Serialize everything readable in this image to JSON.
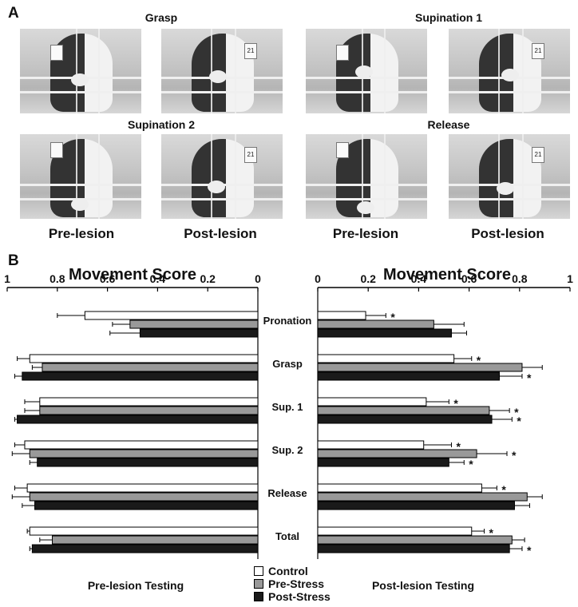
{
  "panel_a_letter": "A",
  "panel_b_letter": "B",
  "photo_titles": [
    "Grasp",
    "Supination 1",
    "Supination 2",
    "Release"
  ],
  "photo_tag_numbers": [
    "21"
  ],
  "condition_labels": [
    "Pre-lesion",
    "Post-lesion",
    "Pre-lesion",
    "Post-lesion"
  ],
  "colors": {
    "control": "#ffffff",
    "pre_stress": "#999999",
    "post_stress": "#1a1a1a",
    "stroke": "#000000"
  },
  "chart_data": [
    {
      "type": "bar",
      "orientation": "horizontal",
      "x_reversed": true,
      "title": "Movement Score",
      "subtitle": "Pre-lesion Testing",
      "xlim": [
        0,
        1
      ],
      "xticks": [
        "0",
        "0.2",
        "0.4",
        "0.6",
        "0.8",
        "1"
      ],
      "categories": [
        "Pronation",
        "Grasp",
        "Sup. 1",
        "Sup. 2",
        "Release",
        "Total"
      ],
      "series": [
        {
          "name": "Control",
          "values": [
            0.69,
            0.91,
            0.87,
            0.93,
            0.92,
            0.91
          ],
          "errors": [
            0.11,
            0.05,
            0.06,
            0.04,
            0.05,
            0.01
          ]
        },
        {
          "name": "Pre-Stress",
          "values": [
            0.51,
            0.86,
            0.87,
            0.91,
            0.91,
            0.82
          ],
          "errors": [
            0.07,
            0.04,
            0.06,
            0.07,
            0.07,
            0.05
          ]
        },
        {
          "name": "Post-Stress",
          "values": [
            0.47,
            0.94,
            0.96,
            0.88,
            0.89,
            0.9
          ],
          "errors": [
            0.12,
            0.03,
            0.01,
            0.03,
            0.05,
            0.01
          ]
        }
      ]
    },
    {
      "type": "bar",
      "orientation": "horizontal",
      "title": "Movement Score",
      "subtitle": "Post-lesion Testing",
      "xlim": [
        0,
        1
      ],
      "xticks": [
        "0",
        "0.2",
        "0.4",
        "0.6",
        "0.8",
        "1"
      ],
      "categories": [
        "Pronation",
        "Grasp",
        "Sup. 1",
        "Sup. 2",
        "Release",
        "Total"
      ],
      "series": [
        {
          "name": "Control",
          "values": [
            0.19,
            0.54,
            0.43,
            0.42,
            0.65,
            0.61
          ],
          "errors": [
            0.08,
            0.07,
            0.09,
            0.11,
            0.06,
            0.05
          ],
          "sig": [
            "*",
            "*",
            "*",
            "*",
            "*",
            "*"
          ]
        },
        {
          "name": "Pre-Stress",
          "values": [
            0.46,
            0.81,
            0.68,
            0.63,
            0.83,
            0.77
          ],
          "errors": [
            0.12,
            0.08,
            0.08,
            0.12,
            0.06,
            0.05
          ],
          "sig": [
            "",
            "",
            "*",
            "*",
            "",
            ""
          ]
        },
        {
          "name": "Post-Stress",
          "values": [
            0.53,
            0.72,
            0.69,
            0.52,
            0.78,
            0.76
          ],
          "errors": [
            0.06,
            0.09,
            0.08,
            0.06,
            0.06,
            0.05
          ],
          "sig": [
            "",
            "*",
            "*",
            "*",
            "",
            "*"
          ]
        }
      ]
    }
  ],
  "legend": [
    "Control",
    "Pre-Stress",
    "Post-Stress"
  ]
}
